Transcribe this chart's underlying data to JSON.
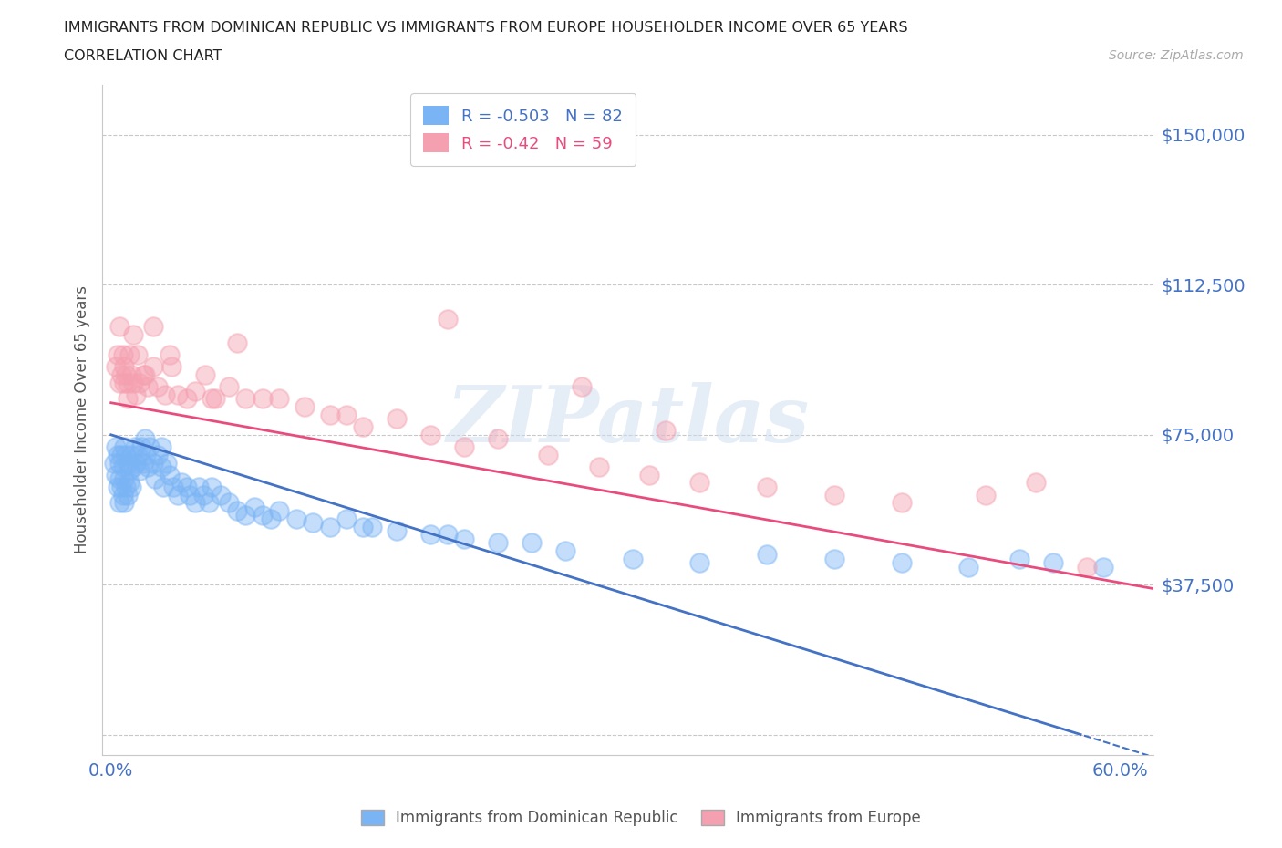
{
  "title_line1": "IMMIGRANTS FROM DOMINICAN REPUBLIC VS IMMIGRANTS FROM EUROPE HOUSEHOLDER INCOME OVER 65 YEARS",
  "title_line2": "CORRELATION CHART",
  "source_text": "Source: ZipAtlas.com",
  "ylabel": "Householder Income Over 65 years",
  "xlim": [
    -0.005,
    0.62
  ],
  "ylim": [
    -5000,
    162500
  ],
  "yticks": [
    0,
    37500,
    75000,
    112500,
    150000
  ],
  "ytick_labels": [
    "",
    "$37,500",
    "$75,000",
    "$112,500",
    "$150,000"
  ],
  "xticks": [
    0.0,
    0.1,
    0.2,
    0.3,
    0.4,
    0.5,
    0.6
  ],
  "xtick_labels": [
    "0.0%",
    "",
    "",
    "",
    "",
    "",
    "60.0%"
  ],
  "color_dr": "#7ab4f5",
  "color_eu": "#f5a0b0",
  "line_color_dr": "#4472c4",
  "line_color_eu": "#e84c7d",
  "R_dr": -0.503,
  "N_dr": 82,
  "R_eu": -0.42,
  "N_eu": 59,
  "legend_label_dr": "Immigrants from Dominican Republic",
  "legend_label_eu": "Immigrants from Europe",
  "watermark": "ZIPatlas",
  "background_color": "#ffffff",
  "grid_color": "#c8c8c8",
  "axis_color": "#c8c8c8",
  "title_color": "#333333",
  "tick_label_color_x": "#4472c4",
  "tick_label_color_y": "#4472c4",
  "dr_intercept": 75000,
  "dr_slope": -130000,
  "eu_intercept": 83000,
  "eu_slope": -75000,
  "dr_x": [
    0.002,
    0.003,
    0.003,
    0.004,
    0.004,
    0.005,
    0.005,
    0.005,
    0.006,
    0.006,
    0.007,
    0.007,
    0.008,
    0.008,
    0.008,
    0.009,
    0.009,
    0.01,
    0.01,
    0.011,
    0.011,
    0.012,
    0.012,
    0.013,
    0.014,
    0.015,
    0.016,
    0.017,
    0.018,
    0.019,
    0.02,
    0.021,
    0.022,
    0.023,
    0.025,
    0.026,
    0.028,
    0.03,
    0.031,
    0.033,
    0.035,
    0.037,
    0.04,
    0.042,
    0.045,
    0.047,
    0.05,
    0.052,
    0.055,
    0.058,
    0.06,
    0.065,
    0.07,
    0.075,
    0.08,
    0.085,
    0.09,
    0.095,
    0.1,
    0.11,
    0.12,
    0.13,
    0.14,
    0.15,
    0.17,
    0.19,
    0.21,
    0.23,
    0.27,
    0.31,
    0.35,
    0.39,
    0.43,
    0.47,
    0.51,
    0.54,
    0.56,
    0.59,
    0.03,
    0.25,
    0.155,
    0.2
  ],
  "dr_y": [
    68000,
    72000,
    65000,
    70000,
    62000,
    68000,
    64000,
    58000,
    70000,
    62000,
    67000,
    60000,
    72000,
    64000,
    58000,
    70000,
    62000,
    68000,
    60000,
    66000,
    63000,
    70000,
    62000,
    67000,
    72000,
    68000,
    70000,
    66000,
    72000,
    68000,
    74000,
    70000,
    67000,
    72000,
    68000,
    64000,
    70000,
    67000,
    62000,
    68000,
    65000,
    62000,
    60000,
    63000,
    62000,
    60000,
    58000,
    62000,
    60000,
    58000,
    62000,
    60000,
    58000,
    56000,
    55000,
    57000,
    55000,
    54000,
    56000,
    54000,
    53000,
    52000,
    54000,
    52000,
    51000,
    50000,
    49000,
    48000,
    46000,
    44000,
    43000,
    45000,
    44000,
    43000,
    42000,
    44000,
    43000,
    42000,
    72000,
    48000,
    52000,
    50000
  ],
  "eu_x": [
    0.003,
    0.004,
    0.005,
    0.005,
    0.006,
    0.007,
    0.008,
    0.008,
    0.009,
    0.01,
    0.011,
    0.012,
    0.013,
    0.015,
    0.017,
    0.019,
    0.022,
    0.025,
    0.028,
    0.032,
    0.036,
    0.04,
    0.045,
    0.05,
    0.056,
    0.062,
    0.07,
    0.08,
    0.09,
    0.1,
    0.115,
    0.13,
    0.15,
    0.17,
    0.19,
    0.21,
    0.23,
    0.26,
    0.29,
    0.32,
    0.35,
    0.39,
    0.43,
    0.47,
    0.52,
    0.55,
    0.58,
    0.33,
    0.2,
    0.28,
    0.14,
    0.075,
    0.06,
    0.035,
    0.025,
    0.02,
    0.016,
    0.013,
    0.01
  ],
  "eu_y": [
    92000,
    95000,
    88000,
    102000,
    90000,
    95000,
    88000,
    92000,
    90000,
    88000,
    95000,
    90000,
    88000,
    85000,
    88000,
    90000,
    87000,
    92000,
    87000,
    85000,
    92000,
    85000,
    84000,
    86000,
    90000,
    84000,
    87000,
    84000,
    84000,
    84000,
    82000,
    80000,
    77000,
    79000,
    75000,
    72000,
    74000,
    70000,
    67000,
    65000,
    63000,
    62000,
    60000,
    58000,
    60000,
    63000,
    42000,
    76000,
    104000,
    87000,
    80000,
    98000,
    84000,
    95000,
    102000,
    90000,
    95000,
    100000,
    84000
  ]
}
